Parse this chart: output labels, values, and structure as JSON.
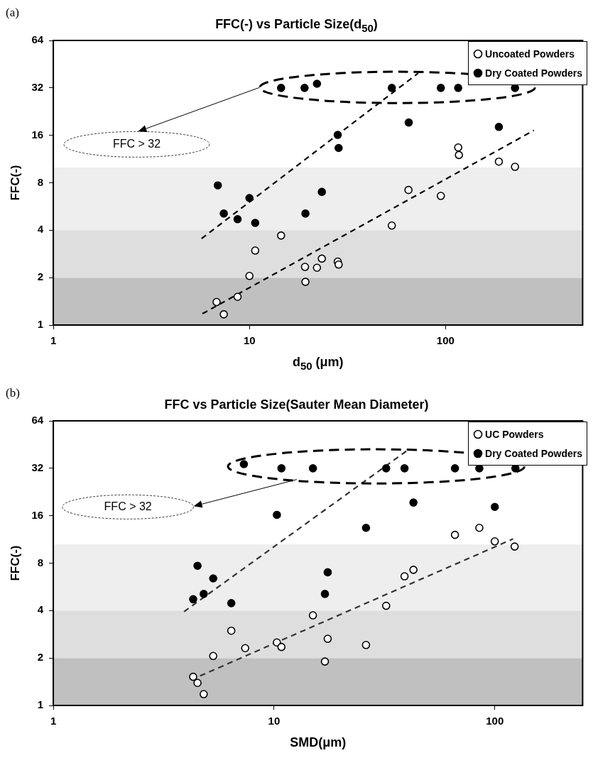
{
  "chart_data": [
    {
      "type": "scatter",
      "title": "FFC(-) vs Particle Size(d$_{50}$)",
      "xlabel": "d$_{50}$ (μm)",
      "ylabel": "FFC(-)",
      "annotations": [
        "(a)",
        "FFC > 32"
      ],
      "log": "xy",
      "grid": false,
      "legend": "top right",
      "marker": "circle",
      "xlim": [
        1,
        500
      ],
      "xticks": [
        1,
        10,
        100
      ],
      "ylim": [
        1,
        64
      ],
      "yticks": [
        1,
        2,
        4,
        8,
        16,
        32,
        64
      ],
      "bands": [
        {
          "axis": "y",
          "from": 1,
          "to": 2,
          "color": "#c0c0c0"
        },
        {
          "axis": "y",
          "from": 2,
          "to": 4,
          "color": "#dedede"
        },
        {
          "axis": "y",
          "from": 4,
          "to": 10,
          "color": "#eeeeee"
        }
      ],
      "series": [
        {
          "name": "Uncoated Powders",
          "type": "scatter",
          "color": "#000000",
          "x": [
            14.5,
            10.7,
            10,
            19.2,
            22.1,
            23.4,
            19.3,
            6.8,
            8.7,
            7.4,
            116,
            117,
            187,
            226,
            64.7,
            94.6,
            53.2,
            28.2,
            28.5
          ],
          "values": [
            3.7,
            2.97,
            2.05,
            2.34,
            2.31,
            2.64,
            1.88,
            1.4,
            1.51,
            1.17,
            13.4,
            12,
            10.9,
            10.1,
            7.2,
            6.6,
            4.28,
            2.53,
            2.42
          ]
        },
        {
          "name": "Dry Coated Powders",
          "type": "scatter",
          "color": "#000000",
          "x": [
            14.5,
            19.1,
            22.1,
            53.2,
            94.6,
            116,
            226,
            6.9,
            10,
            7.4,
            8.7,
            10.7,
            19.3,
            23.4,
            28.2,
            28.5,
            64.9,
            187
          ],
          "values": [
            32,
            32,
            34,
            32,
            32,
            32,
            32,
            7.7,
            6.4,
            5.1,
            4.7,
            4.45,
            5.1,
            7,
            16.1,
            13.3,
            19.3,
            18.1
          ]
        },
        {
          "type": "line",
          "color": "#000000",
          "line_style": "dashed",
          "marker": "none",
          "x": [
            5.7,
            72.6
          ],
          "values": [
            3.54,
            39.7
          ]
        },
        {
          "type": "line",
          "color": "#000000",
          "line_style": "dashed",
          "marker": "none",
          "x": [
            5.76,
            282
          ],
          "values": [
            1.18,
            17.2
          ]
        }
      ]
    },
    {
      "type": "scatter",
      "title": "FFC vs Particle Size(Sauter Mean Diameter)",
      "xlabel": "SMD(μm)",
      "ylabel": "FFC(-)",
      "annotations": [
        "(b)",
        "FFC > 32"
      ],
      "log": "xy",
      "grid": false,
      "legend": "top right",
      "marker": "circle",
      "xlim": [
        1,
        250
      ],
      "xticks": [
        1,
        10,
        100
      ],
      "ylim": [
        1,
        64
      ],
      "yticks": [
        1,
        2,
        4,
        8,
        16,
        32,
        64
      ],
      "bands": [
        {
          "axis": "y",
          "from": 1,
          "to": 2,
          "color": "#c0c0c0"
        },
        {
          "axis": "y",
          "from": 2,
          "to": 4,
          "color": "#dedede"
        },
        {
          "axis": "y",
          "from": 4,
          "to": 10.5,
          "color": "#eeeeee"
        }
      ],
      "series": [
        {
          "name": "UC Powders",
          "type": "scatter",
          "color": "#000000",
          "x": [
            15,
            6.4,
            7.4,
            5.3,
            10.3,
            10.8,
            4.3,
            4.5,
            4.8,
            17,
            17.5,
            85.1,
            66,
            100,
            123,
            42.8,
            39,
            32.2,
            26.1
          ],
          "values": [
            3.73,
            2.98,
            2.31,
            2.06,
            2.51,
            2.35,
            1.52,
            1.39,
            1.18,
            1.9,
            2.65,
            13.4,
            12.1,
            11,
            10.2,
            7.26,
            6.6,
            4.29,
            2.42
          ]
        },
        {
          "name": "Dry Coated Powders",
          "type": "scatter",
          "color": "#000000",
          "x": [
            7.3,
            10.8,
            15,
            32.2,
            39,
            66,
            85.1,
            124,
            10.3,
            4.5,
            5.3,
            4.8,
            4.3,
            6.4,
            17.5,
            17,
            42.8,
            26.1,
            100
          ],
          "values": [
            34,
            32,
            32,
            32,
            32,
            32,
            32,
            32,
            16.2,
            7.7,
            6.4,
            5.1,
            4.72,
            4.46,
            7,
            5.1,
            19.4,
            13.4,
            18.2
          ]
        },
        {
          "type": "line",
          "color": "#333333",
          "line_style": "dashed",
          "marker": "none",
          "x": [
            3.91,
            40.5
          ],
          "values": [
            3.94,
            41.9
          ]
        },
        {
          "type": "line",
          "color": "#333333",
          "line_style": "dashed",
          "marker": "none",
          "x": [
            4.62,
            121
          ],
          "values": [
            1.54,
            11.4
          ]
        }
      ]
    }
  ]
}
